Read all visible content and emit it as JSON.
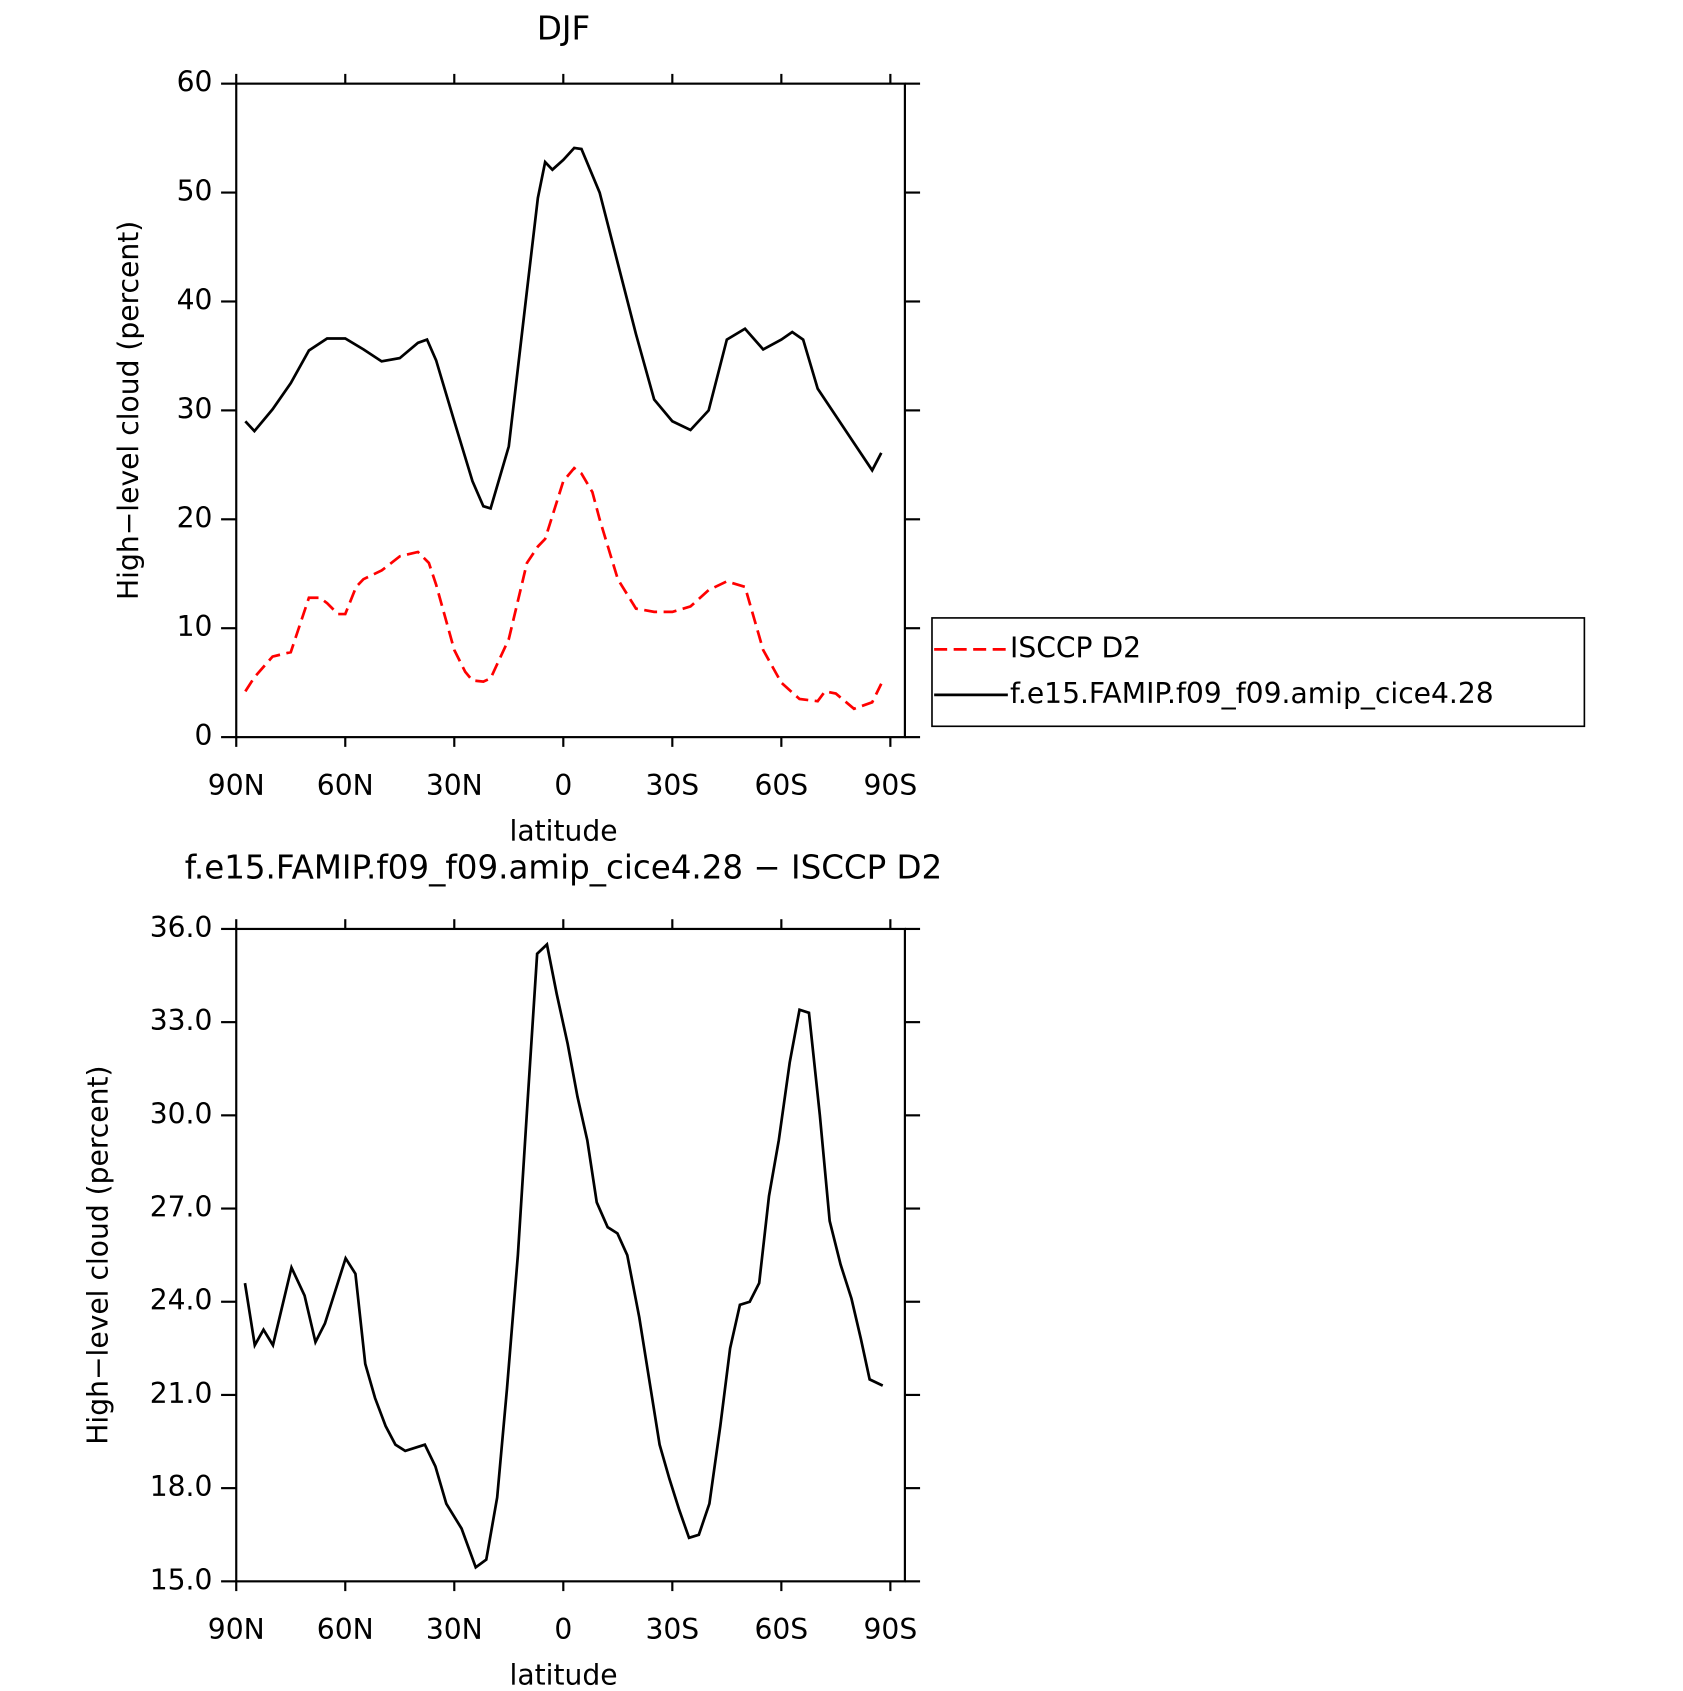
{
  "chart_data": [
    {
      "type": "line",
      "title": "DJF",
      "xlabel": "latitude",
      "ylabel": "High−level cloud (percent)",
      "xlim": [
        90,
        -94
      ],
      "ylim": [
        0,
        60
      ],
      "xticks": [
        {
          "value": 90,
          "label": "90N"
        },
        {
          "value": 60,
          "label": "60N"
        },
        {
          "value": 30,
          "label": "30N"
        },
        0,
        {
          "value": -30,
          "label": "30S"
        },
        {
          "value": -60,
          "label": "60S"
        },
        {
          "value": -90,
          "label": "90S"
        }
      ],
      "yticks": [
        0,
        10,
        20,
        30,
        40,
        50,
        60
      ],
      "series": [
        {
          "name": "ISCCP D2",
          "color": "#ff0000",
          "line_style": "dashed",
          "x": [
            87.5,
            85,
            80,
            75,
            70,
            67,
            65,
            62,
            60,
            57,
            55,
            50,
            45,
            40,
            37,
            35,
            30,
            27,
            25,
            22,
            20,
            15,
            10,
            7,
            5,
            0,
            -3,
            -5,
            -8,
            -10,
            -15,
            -20,
            -25,
            -30,
            -35,
            -40,
            -45,
            -50,
            -55,
            -60,
            -65,
            -70,
            -72,
            -75,
            -80,
            -85,
            -87.5
          ],
          "values": [
            4.2,
            5.5,
            7.4,
            7.8,
            12.8,
            12.8,
            12.3,
            11.3,
            11.3,
            13.8,
            14.5,
            15.3,
            16.6,
            17,
            16,
            14,
            8,
            6,
            5.2,
            5.1,
            5.4,
            9,
            16,
            17.5,
            18.2,
            23.5,
            24.7,
            24.2,
            22.5,
            20,
            14.5,
            11.8,
            11.5,
            11.5,
            12,
            13.5,
            14.3,
            13.8,
            8,
            5,
            3.5,
            3.3,
            4.2,
            4.0,
            2.6,
            3.2,
            4.9
          ]
        },
        {
          "name": "f.e15.FAMIP.f09_f09.amip_cice4.28",
          "color": "#000000",
          "line_style": "solid",
          "x": [
            87.5,
            85,
            80,
            75,
            70,
            65,
            60,
            55,
            50,
            45,
            40,
            37.5,
            35,
            30,
            25,
            22,
            20,
            15,
            10,
            7,
            5,
            3,
            0,
            -3,
            -5,
            -10,
            -15,
            -20,
            -25,
            -30,
            -35,
            -40,
            -45,
            -50,
            -55,
            -60,
            -63,
            -66,
            -70,
            -75,
            -80,
            -85,
            -87.5
          ],
          "values": [
            29,
            28.1,
            30.1,
            32.5,
            35.5,
            36.6,
            36.6,
            35.6,
            34.5,
            34.8,
            36.2,
            36.5,
            34.6,
            29,
            23.5,
            21.2,
            21,
            26.7,
            41,
            49.5,
            52.8,
            52.1,
            53,
            54.1,
            54,
            50,
            43.5,
            37,
            31,
            29,
            28.2,
            30,
            36.5,
            37.5,
            35.6,
            36.5,
            37.2,
            36.5,
            32,
            29.5,
            27,
            24.5,
            26.1
          ]
        }
      ]
    },
    {
      "type": "line",
      "title": "f.e15.FAMIP.f09_f09.amip_cice4.28 − ISCCP D2",
      "xlabel": "latitude",
      "ylabel": "High−level cloud (percent)",
      "xlim": [
        90,
        -94
      ],
      "ylim": [
        15,
        36
      ],
      "xticks": [
        {
          "value": 90,
          "label": "90N"
        },
        {
          "value": 60,
          "label": "60N"
        },
        {
          "value": 30,
          "label": "30N"
        },
        0,
        {
          "value": -30,
          "label": "30S"
        },
        {
          "value": -60,
          "label": "60S"
        },
        {
          "value": -90,
          "label": "90S"
        }
      ],
      "yticks": [
        {
          "value": 15,
          "label": "15.0"
        },
        {
          "value": 18,
          "label": "18.0"
        },
        {
          "value": 21,
          "label": "21.0"
        },
        {
          "value": 24,
          "label": "24.0"
        },
        {
          "value": 27,
          "label": "27.0"
        },
        {
          "value": 30,
          "label": "30.0"
        },
        {
          "value": 33,
          "label": "33.0"
        },
        {
          "value": 36,
          "label": "36.0"
        }
      ],
      "series": [
        {
          "color": "#000000",
          "line_style": "solid",
          "x": [
            87.6,
            84.9,
            82.5,
            79.9,
            74.8,
            71.2,
            68.2,
            65.6,
            59.9,
            57.2,
            54.5,
            51.8,
            48.9,
            46.2,
            43.5,
            38.1,
            35.2,
            32.2,
            28,
            24.1,
            21.2,
            18.2,
            15.5,
            12.5,
            9.8,
            7.2,
            4.5,
            1.8,
            -1.2,
            -3.9,
            -6.6,
            -9.2,
            -12.2,
            -14.9,
            -17.6,
            -20.9,
            -26.5,
            -29.2,
            -31.9,
            -34.6,
            -37.3,
            -40.2,
            -43.2,
            -45.9,
            -48.6,
            -51.3,
            -53.9,
            -56.6,
            -59.3,
            -62.3,
            -65,
            -67.6,
            -70.6,
            -73.3,
            -76.3,
            -79.3,
            -81.9,
            -84.3,
            -87.9
          ],
          "values": [
            24.6,
            22.6,
            23.1,
            22.6,
            25.1,
            24.2,
            22.7,
            23.3,
            25.4,
            24.9,
            22,
            20.9,
            20,
            19.4,
            19.2,
            19.4,
            18.7,
            17.5,
            16.7,
            15.45,
            15.7,
            17.7,
            21.2,
            25.5,
            30.5,
            35.2,
            35.5,
            33.9,
            32.3,
            30.6,
            29.2,
            27.2,
            26.4,
            26.2,
            25.5,
            23.5,
            19.4,
            18.3,
            17.3,
            16.4,
            16.5,
            17.5,
            20,
            22.5,
            23.9,
            24,
            24.6,
            27.4,
            29.2,
            31.7,
            33.4,
            33.3,
            30,
            26.6,
            25.2,
            24.1,
            22.8,
            21.5,
            21.3
          ]
        }
      ]
    }
  ]
}
